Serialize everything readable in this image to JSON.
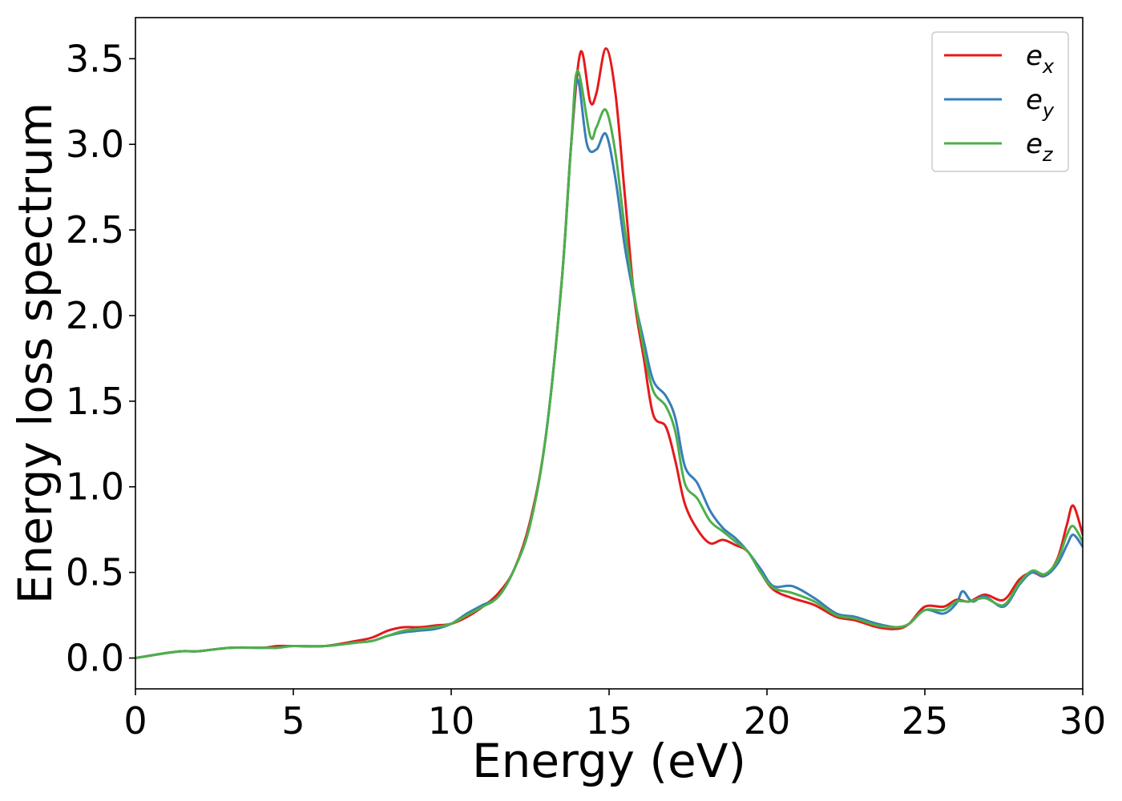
{
  "chart_data": {
    "type": "line",
    "title": "",
    "xlabel": "Energy (eV)",
    "ylabel": "Energy loss spectrum",
    "xlim": [
      0,
      30
    ],
    "ylim": [
      -0.18,
      3.74
    ],
    "xticks": [
      0,
      5,
      10,
      15,
      20,
      25,
      30
    ],
    "yticks": [
      0.0,
      0.5,
      1.0,
      1.5,
      2.0,
      2.5,
      3.0,
      3.5
    ],
    "xtick_labels": [
      "0",
      "5",
      "10",
      "15",
      "20",
      "25",
      "30"
    ],
    "ytick_labels": [
      "0.0",
      "0.5",
      "1.0",
      "1.5",
      "2.0",
      "2.5",
      "3.0",
      "3.5"
    ],
    "grid": false,
    "legend": "top-right",
    "series": [
      {
        "name": "e_x",
        "label_main": "e",
        "label_sub": "x",
        "color": "#e41a1c",
        "x": [
          0,
          1,
          1.5,
          2,
          3,
          4,
          4.5,
          5,
          6,
          7,
          7.5,
          8,
          8.5,
          9,
          9.5,
          10,
          10.5,
          11,
          11.5,
          12,
          12.5,
          13,
          13.5,
          13.8,
          14.1,
          14.4,
          14.6,
          14.9,
          15.2,
          15.5,
          15.8,
          16.1,
          16.4,
          16.8,
          17.1,
          17.4,
          17.8,
          18.2,
          18.6,
          19.0,
          19.4,
          19.8,
          20.2,
          20.8,
          21.5,
          22.2,
          22.8,
          23.5,
          24.1,
          24.5,
          25.0,
          25.6,
          26.0,
          26.4,
          26.9,
          27.5,
          28.0,
          28.4,
          28.8,
          29.2,
          29.5,
          29.7,
          30.0
        ],
        "y": [
          0.0,
          0.03,
          0.04,
          0.04,
          0.06,
          0.06,
          0.07,
          0.07,
          0.07,
          0.1,
          0.12,
          0.16,
          0.18,
          0.18,
          0.19,
          0.2,
          0.24,
          0.3,
          0.38,
          0.52,
          0.8,
          1.3,
          2.2,
          3.0,
          3.54,
          3.25,
          3.3,
          3.56,
          3.3,
          2.7,
          2.1,
          1.75,
          1.42,
          1.35,
          1.15,
          0.9,
          0.75,
          0.67,
          0.69,
          0.66,
          0.62,
          0.5,
          0.4,
          0.35,
          0.31,
          0.24,
          0.22,
          0.18,
          0.17,
          0.2,
          0.3,
          0.3,
          0.34,
          0.33,
          0.37,
          0.34,
          0.46,
          0.5,
          0.48,
          0.58,
          0.78,
          0.89,
          0.72
        ]
      },
      {
        "name": "e_y",
        "label_main": "e",
        "label_sub": "y",
        "color": "#377eb8",
        "x": [
          0,
          1,
          1.5,
          2,
          3,
          4,
          4.5,
          5,
          6,
          7,
          7.5,
          8,
          8.5,
          9,
          9.5,
          10,
          10.5,
          11,
          11.5,
          12,
          12.5,
          13,
          13.5,
          13.8,
          14.0,
          14.3,
          14.6,
          14.9,
          15.2,
          15.5,
          15.8,
          16.1,
          16.4,
          16.8,
          17.1,
          17.4,
          17.8,
          18.2,
          18.6,
          19.0,
          19.4,
          19.8,
          20.2,
          20.8,
          21.5,
          22.2,
          22.8,
          23.5,
          24.1,
          24.5,
          25.0,
          25.6,
          26.0,
          26.2,
          26.5,
          26.9,
          27.5,
          28.0,
          28.4,
          28.8,
          29.2,
          29.5,
          29.7,
          30.0
        ],
        "y": [
          0.0,
          0.03,
          0.04,
          0.04,
          0.06,
          0.06,
          0.06,
          0.07,
          0.07,
          0.09,
          0.1,
          0.13,
          0.15,
          0.16,
          0.17,
          0.2,
          0.26,
          0.31,
          0.36,
          0.52,
          0.78,
          1.3,
          2.2,
          3.0,
          3.38,
          3.0,
          2.97,
          3.06,
          2.8,
          2.4,
          2.1,
          1.85,
          1.62,
          1.53,
          1.4,
          1.12,
          1.02,
          0.86,
          0.76,
          0.7,
          0.62,
          0.52,
          0.42,
          0.42,
          0.35,
          0.26,
          0.24,
          0.2,
          0.18,
          0.2,
          0.28,
          0.26,
          0.32,
          0.39,
          0.33,
          0.36,
          0.3,
          0.43,
          0.5,
          0.48,
          0.55,
          0.66,
          0.72,
          0.65
        ]
      },
      {
        "name": "e_z",
        "label_main": "e",
        "label_sub": "z",
        "color": "#4daf4a",
        "x": [
          0,
          1,
          1.5,
          2,
          3,
          4,
          4.5,
          5,
          6,
          7,
          7.5,
          8,
          8.5,
          9,
          9.5,
          10,
          10.5,
          11,
          11.5,
          12,
          12.5,
          13,
          13.5,
          13.8,
          14.0,
          14.4,
          14.6,
          14.9,
          15.2,
          15.5,
          15.8,
          16.1,
          16.4,
          16.8,
          17.1,
          17.4,
          17.8,
          18.2,
          18.6,
          19.0,
          19.4,
          19.8,
          20.2,
          20.8,
          21.5,
          22.2,
          22.8,
          23.5,
          24.1,
          24.5,
          25.0,
          25.6,
          26.0,
          26.4,
          26.9,
          27.5,
          28.0,
          28.4,
          28.8,
          29.2,
          29.5,
          29.7,
          30.0
        ],
        "y": [
          0.0,
          0.03,
          0.04,
          0.04,
          0.06,
          0.06,
          0.06,
          0.07,
          0.07,
          0.09,
          0.1,
          0.13,
          0.16,
          0.17,
          0.18,
          0.2,
          0.25,
          0.3,
          0.36,
          0.52,
          0.78,
          1.3,
          2.2,
          3.0,
          3.43,
          3.05,
          3.1,
          3.2,
          2.95,
          2.5,
          2.12,
          1.8,
          1.56,
          1.47,
          1.32,
          1.02,
          0.93,
          0.8,
          0.74,
          0.68,
          0.62,
          0.5,
          0.41,
          0.38,
          0.33,
          0.25,
          0.23,
          0.19,
          0.18,
          0.2,
          0.28,
          0.28,
          0.33,
          0.33,
          0.35,
          0.31,
          0.44,
          0.51,
          0.49,
          0.57,
          0.72,
          0.77,
          0.68
        ]
      }
    ]
  }
}
